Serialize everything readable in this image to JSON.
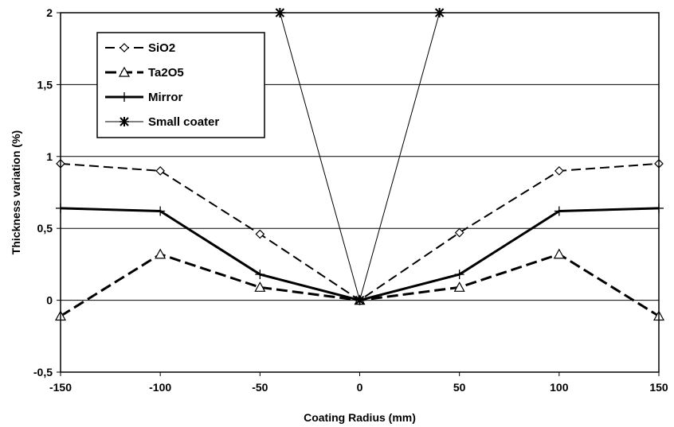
{
  "chart_data": {
    "type": "line",
    "xlabel": "Coating Radius (mm)",
    "ylabel": "Thickness variation (%)",
    "xlim": [
      -150,
      150
    ],
    "ylim": [
      -0.5,
      2
    ],
    "x_ticks": [
      -150,
      -100,
      -50,
      0,
      50,
      100,
      150
    ],
    "y_ticks": [
      -0.5,
      0,
      0.5,
      1,
      1.5,
      2
    ],
    "x_tick_labels": [
      "-150",
      "-100",
      "-50",
      "0",
      "50",
      "100",
      "150"
    ],
    "y_tick_labels": [
      "-0,5",
      "0",
      "0,5",
      "1",
      "1,5",
      "2"
    ],
    "grid": "horizontal",
    "legend_position": "top-left",
    "x": [
      -150,
      -100,
      -50,
      0,
      50,
      100,
      150
    ],
    "series": [
      {
        "name": "SiO2",
        "marker": "diamond",
        "line": "dashed",
        "width": 2,
        "values": [
          0.95,
          0.9,
          0.46,
          0.0,
          0.47,
          0.9,
          0.95
        ]
      },
      {
        "name": "Ta2O5",
        "marker": "triangle",
        "line": "dashed",
        "width": 3,
        "values": [
          -0.11,
          0.32,
          0.09,
          0.0,
          0.09,
          0.32,
          -0.11
        ]
      },
      {
        "name": "Mirror",
        "marker": "plus",
        "line": "solid",
        "width": 3,
        "values": [
          0.64,
          0.62,
          0.18,
          0.0,
          0.18,
          0.62,
          0.64
        ]
      },
      {
        "name": "Small coater",
        "marker": "star",
        "line": "solid",
        "width": 1,
        "points": [
          [
            -40,
            2
          ],
          [
            0,
            0
          ],
          [
            40,
            2
          ]
        ]
      }
    ]
  }
}
